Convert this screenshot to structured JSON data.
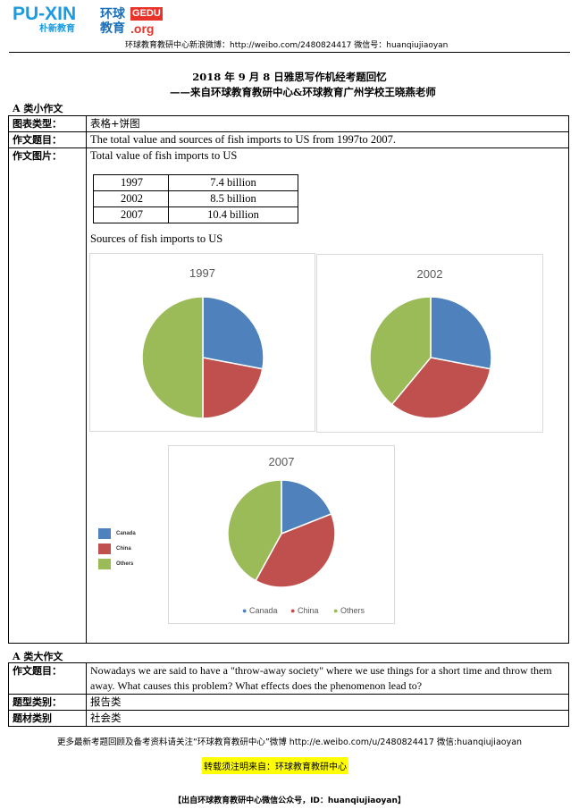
{
  "header": {
    "logo_puxin_line1": "PU-XIN",
    "logo_puxin_line2": "朴新教育",
    "logo_hq_line1": "环球",
    "logo_hq_line2": "教育",
    "logo_hq_gedu": "GEDU",
    "logo_hq_org": ".org",
    "subtitle": "环球教育教研中心新浪微博：http://weibo.com/2480824417  微信号：huanqiujiaoyan"
  },
  "doc": {
    "title_line1": "2018 年 9 月 8 日雅思写作机经考题回忆",
    "title_line2": "——来自环球教育教研中心&环球教育广州学校王晓燕老师"
  },
  "section_small": {
    "heading": "A 类小作文",
    "rows": [
      {
        "label": "图表类型：",
        "value": "表格+饼图"
      },
      {
        "label": "作文题目：",
        "value": "The total value and sources of fish imports to US from 1997to 2007."
      },
      {
        "label": "作文图片：",
        "value": "Total value of fish imports to US"
      }
    ],
    "value_table": [
      {
        "year": "1997",
        "value": "7.4 billion"
      },
      {
        "year": "2002",
        "value": "8.5 billion"
      },
      {
        "year": "2007",
        "value": "10.4 billion"
      }
    ],
    "sources_label": "Sources of fish imports to US"
  },
  "chart_data": [
    {
      "type": "pie",
      "title": "1997",
      "categories": [
        "Canada",
        "China",
        "Others"
      ],
      "values": [
        28,
        22,
        50
      ],
      "colors": [
        "#4f81bd",
        "#c0504d",
        "#9bbb59"
      ]
    },
    {
      "type": "pie",
      "title": "2002",
      "categories": [
        "Canada",
        "China",
        "Others"
      ],
      "values": [
        28,
        33,
        39
      ],
      "colors": [
        "#4f81bd",
        "#c0504d",
        "#9bbb59"
      ]
    },
    {
      "type": "pie",
      "title": "2007",
      "categories": [
        "Canada",
        "China",
        "Others"
      ],
      "values": [
        19,
        39,
        42
      ],
      "colors": [
        "#4f81bd",
        "#c0504d",
        "#9bbb59"
      ]
    }
  ],
  "legend": {
    "side": [
      "Canada",
      "China",
      "Others"
    ],
    "bottom": [
      "Canada",
      "China",
      "Others"
    ]
  },
  "section_large": {
    "heading": "A 类大作文",
    "rows": [
      {
        "label": "作文题目：",
        "value": "Nowadays we are said to have a \"throw-away society\" where we use things for a short time and throw them away. What causes this problem?    What effects does the phenomenon lead to?"
      },
      {
        "label": "题型类别：",
        "value": "报告类"
      },
      {
        "label": "题材类别",
        "value": "社会类"
      }
    ]
  },
  "footer": {
    "line1": "更多最新考题回顾及备考资料请关注“环球教育教研中心”微博 http://e.weibo.com/u/2480824417  微信:huanqiujiaoyan",
    "highlight": "转载须注明来自：环球教育教研中心",
    "line3": "【出自环球教育教研中心微信公众号，ID：huanqiujiaoyan】"
  }
}
